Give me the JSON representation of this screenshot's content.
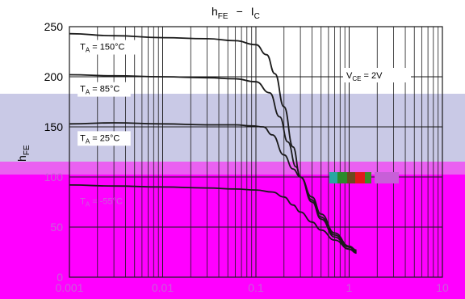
{
  "chart_data": {
    "type": "line",
    "title": "hFE − IC",
    "title_parts": {
      "y_symbol": "h",
      "y_sub": "FE",
      "dash": "−",
      "x_symbol": "I",
      "x_sub": "C"
    },
    "ylabel": "hFE",
    "ylabel_parts": {
      "symbol": "h",
      "sub": "FE"
    },
    "x_scale": "log",
    "xlim": [
      0.001,
      10
    ],
    "ylim": [
      0,
      250
    ],
    "x_ticks": [
      "0.001",
      "0.01",
      "0.1",
      "1",
      "10"
    ],
    "y_ticks": [
      "0",
      "50",
      "100",
      "150",
      "200",
      "250"
    ],
    "grid": true,
    "annotation": {
      "symbol": "V",
      "sub": "CE",
      "rest": " = 2V"
    },
    "series": [
      {
        "name": "TA = 150°C",
        "label": {
          "symbol": "T",
          "sub": "A",
          "rest": " = 150°C"
        },
        "color": "#1a1a1a",
        "x": [
          0.001,
          0.003,
          0.01,
          0.03,
          0.06,
          0.1,
          0.13,
          0.16,
          0.2,
          0.25,
          0.3,
          0.4,
          0.5,
          0.7,
          1.0,
          1.2
        ],
        "y": [
          243,
          241,
          239,
          238,
          236,
          232,
          222,
          203,
          170,
          130,
          100,
          75,
          58,
          40,
          28,
          24
        ]
      },
      {
        "name": "TA = 85°C",
        "label": {
          "symbol": "T",
          "sub": "A",
          "rest": " = 85°C"
        },
        "color": "#1a1a1a",
        "x": [
          0.001,
          0.003,
          0.01,
          0.03,
          0.06,
          0.1,
          0.14,
          0.18,
          0.22,
          0.27,
          0.3,
          0.4,
          0.5,
          0.7,
          1.0,
          1.2
        ],
        "y": [
          202,
          201,
          200,
          199,
          198,
          195,
          184,
          160,
          135,
          110,
          100,
          77,
          60,
          42,
          30,
          26
        ]
      },
      {
        "name": "TA = 25°C",
        "label": {
          "symbol": "T",
          "sub": "A",
          "rest": " = 25°C"
        },
        "color": "#1a1a1a",
        "x": [
          0.001,
          0.003,
          0.01,
          0.03,
          0.06,
          0.09,
          0.12,
          0.15,
          0.2,
          0.25,
          0.3,
          0.4,
          0.5,
          0.7,
          1.0,
          1.2
        ],
        "y": [
          153,
          154,
          153,
          152,
          152,
          151,
          150,
          142,
          122,
          108,
          100,
          80,
          63,
          44,
          31,
          27
        ]
      },
      {
        "name": "TA = -55°C",
        "label": {
          "symbol": "T",
          "sub": "A",
          "rest": " = -55°C"
        },
        "color": "#1a1a1a",
        "x": [
          0.001,
          0.003,
          0.01,
          0.03,
          0.06,
          0.1,
          0.15,
          0.2,
          0.25,
          0.3,
          0.4,
          0.5,
          0.7,
          1.0,
          1.2
        ],
        "y": [
          92,
          91,
          90,
          89,
          88,
          87,
          85,
          80,
          72,
          65,
          55,
          47,
          37,
          28,
          25
        ]
      }
    ]
  },
  "colors": {
    "band_lavender": "#c9c9e6",
    "band_magenta": "#ff00ff",
    "faded_text": "#c85fd8"
  }
}
